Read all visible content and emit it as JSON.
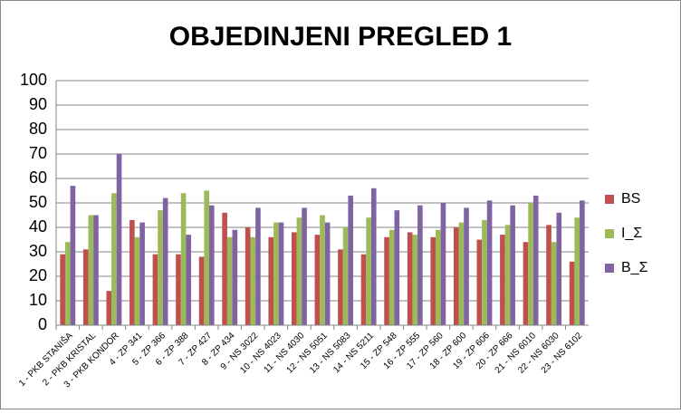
{
  "chart_data": {
    "type": "bar",
    "title": "OBJEDINJENI PREGLED 1",
    "categories": [
      "1 - PKB STANIŠA",
      "2 - PKB KRISTAL",
      "3 - PKB KONDOR",
      "4 - ZP 341",
      "5 - ZP 366",
      "6 - ZP 388",
      "7 - ZP 427",
      "8 - ZP 434",
      "9 - NS 3022",
      "10 - NS 4023",
      "11 - NS 4030",
      "12 - NS 5051",
      "13 - NS 5083",
      "14 - NS 5211",
      "15 - ZP 548",
      "16 - ZP 555",
      "17 - ZP 560",
      "18 - ZP 600",
      "19 - ZP 606",
      "20 - ZP 666",
      "21 - NS 6010",
      "22 - NS 6030",
      "23 - NS 6102"
    ],
    "series": [
      {
        "name": "BS",
        "color": "#c0504d",
        "values": [
          29,
          31,
          14,
          43,
          29,
          29,
          28,
          46,
          40,
          36,
          38,
          37,
          31,
          29,
          36,
          38,
          36,
          40,
          35,
          37,
          34,
          41,
          26
        ]
      },
      {
        "name": "I_Σ",
        "color": "#9bbb59",
        "values": [
          34,
          45,
          54,
          36,
          47,
          54,
          55,
          36,
          36,
          42,
          44,
          45,
          40,
          44,
          39,
          37,
          39,
          42,
          43,
          41,
          50,
          34,
          44
        ]
      },
      {
        "name": "B_Σ",
        "color": "#8064a2",
        "values": [
          57,
          45,
          70,
          42,
          52,
          37,
          49,
          39,
          48,
          42,
          48,
          42,
          53,
          56,
          47,
          49,
          50,
          48,
          51,
          49,
          53,
          46,
          51
        ]
      }
    ],
    "ylim": [
      0,
      100
    ],
    "yticks": [
      0,
      10,
      20,
      30,
      40,
      50,
      60,
      70,
      80,
      90,
      100
    ],
    "grid": true,
    "legend": "right"
  }
}
